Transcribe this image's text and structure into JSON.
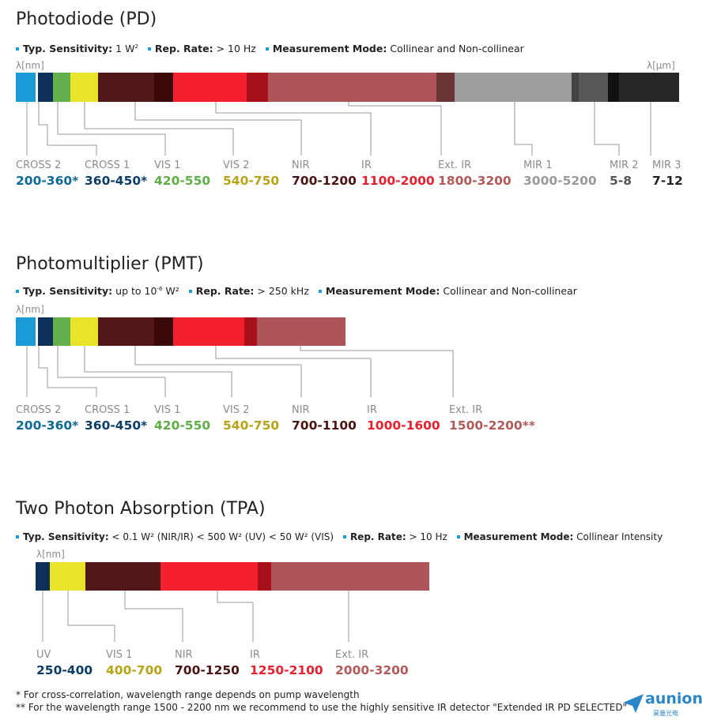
{
  "sections": [
    {
      "title": "Photodiode (PD)",
      "specs": [
        {
          "label": "Typ. Sensitivity:",
          "value": "1 W",
          "sup": "2",
          "after": ""
        },
        {
          "label": "Rep. Rate:",
          "value": "> 10 Hz",
          "sup": "",
          "after": ""
        },
        {
          "label": "Measurement Mode:",
          "value": "Collinear and Non-collinear",
          "sup": "",
          "after": ""
        }
      ],
      "unit_left": "λ[nm]",
      "unit_right": "λ[µm]",
      "detectors": [
        {
          "name": "CROSS 2",
          "range": "200-360*",
          "color": "#0f6a95"
        },
        {
          "name": "CROSS 1",
          "range": "360-450*",
          "color": "#0c3d66"
        },
        {
          "name": "VIS 1",
          "range": "420-550",
          "color": "#5fae47"
        },
        {
          "name": "VIS 2",
          "range": "540-750",
          "color": "#b5a418"
        },
        {
          "name": "NIR",
          "range": "700-1200",
          "color": "#4a1414"
        },
        {
          "name": "IR",
          "range": "1100-2000",
          "color": "#e8202f"
        },
        {
          "name": "Ext. IR",
          "range": "1800-3200",
          "color": "#b05a5a"
        },
        {
          "name": "MIR 1",
          "range": "3000-5200",
          "color": "#9a9a9a"
        },
        {
          "name": "MIR 2",
          "range": "5-8",
          "color": "#555555"
        },
        {
          "name": "MIR 3",
          "range": "7-12",
          "color": "#222222"
        }
      ]
    },
    {
      "title": "Photomultiplier (PMT)",
      "specs": [
        {
          "label": "Typ. Sensitivity:",
          "value": "up to 10",
          "sup": "-6",
          "after": " W²"
        },
        {
          "label": "Rep. Rate:",
          "value": "> 250 kHz",
          "sup": "",
          "after": ""
        },
        {
          "label": "Measurement Mode:",
          "value": "Collinear and Non-collinear",
          "sup": "",
          "after": ""
        }
      ],
      "unit_left": "λ[nm]",
      "detectors": [
        {
          "name": "CROSS 2",
          "range": "200-360*",
          "color": "#0f6a95"
        },
        {
          "name": "CROSS 1",
          "range": "360-450*",
          "color": "#0c3d66"
        },
        {
          "name": "VIS 1",
          "range": "420-550",
          "color": "#5fae47"
        },
        {
          "name": "VIS 2",
          "range": "540-750",
          "color": "#b5a418"
        },
        {
          "name": "NIR",
          "range": "700-1100",
          "color": "#4a1414"
        },
        {
          "name": "IR",
          "range": "1000-1600",
          "color": "#e8202f"
        },
        {
          "name": "Ext. IR",
          "range": "1500-2200**",
          "color": "#b05a5a"
        }
      ]
    },
    {
      "title": "Two Photon Absorption (TPA)",
      "specs": [
        {
          "label": "Typ. Sensitivity:",
          "value": "< 0.1 W² (NIR/IR) < 500 W² (UV) < 50 W² (VIS)",
          "sup": "",
          "after": ""
        },
        {
          "label": "Rep. Rate:",
          "value": "> 10 Hz",
          "sup": "",
          "after": ""
        },
        {
          "label": "Measurement Mode:",
          "value": "Collinear Intensity",
          "sup": "",
          "after": ""
        }
      ],
      "unit_left": "λ[nm]",
      "detectors": [
        {
          "name": "UV",
          "range": "250-400",
          "color": "#0c3d66"
        },
        {
          "name": "VIS 1",
          "range": "400-700",
          "color": "#b5a418"
        },
        {
          "name": "NIR",
          "range": "700-1250",
          "color": "#4a1414"
        },
        {
          "name": "IR",
          "range": "1250-2100",
          "color": "#e8202f"
        },
        {
          "name": "Ext. IR",
          "range": "2000-3200",
          "color": "#b05a5a"
        }
      ]
    }
  ],
  "footnotes": [
    "* For cross-correlation, wavelength range depends on pump wavelength",
    "** For the wavelength range 1500 - 2200 nm we recommend to use the highly sensitive IR detector \"Extended IR PD SELECTED\""
  ],
  "logo": {
    "text": "aunion",
    "sub": "昊量光电"
  },
  "colors": {
    "bullet": "#1a9ad6",
    "cross2_bar": "#1a9ad6",
    "cross1_bar": "#0c3057",
    "vis1_bar": "#62b04b",
    "vis2_bar": "#e9e32a",
    "nir_bar": "#521818",
    "nir_dark_bar": "#3a0a0a",
    "ir_bar": "#f5202d",
    "ir_dark_bar": "#a8101a",
    "extir_bar": "#ad5558",
    "extir_dark_bar": "#6b3537",
    "mir1_bar": "#9d9d9d",
    "mir2_bar": "#585858",
    "mir3_bar": "#272727"
  }
}
